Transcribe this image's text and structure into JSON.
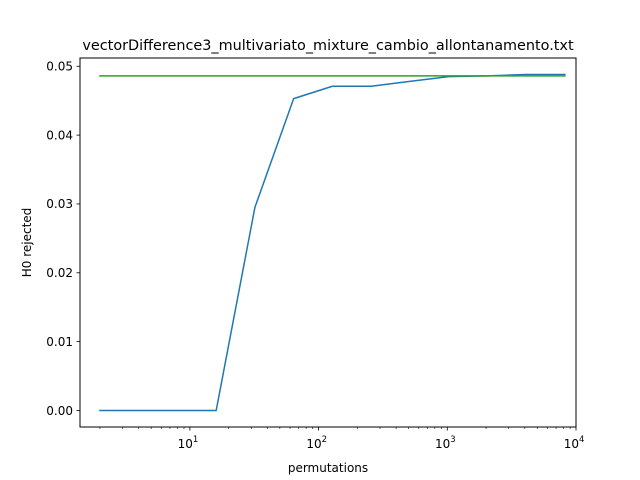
{
  "chart_data": {
    "type": "line",
    "title": "vectorDifference3_multivariato_mixture_cambio_allontanamento.txt",
    "xlabel": "permutations",
    "ylabel": "H0 rejected",
    "xscale": "log",
    "xlim": [
      1.4,
      10000
    ],
    "ylim": [
      -0.0024,
      0.0512
    ],
    "grid": false,
    "legend": "none",
    "x_ticks": [
      {
        "value": 10,
        "base": "10",
        "exp": "1"
      },
      {
        "value": 100,
        "base": "10",
        "exp": "2"
      },
      {
        "value": 1000,
        "base": "10",
        "exp": "3"
      },
      {
        "value": 10000,
        "base": "10",
        "exp": "4"
      }
    ],
    "y_ticks": [
      {
        "value": 0.0,
        "label": "0.00"
      },
      {
        "value": 0.01,
        "label": "0.01"
      },
      {
        "value": 0.02,
        "label": "0.02"
      },
      {
        "value": 0.03,
        "label": "0.03"
      },
      {
        "value": 0.04,
        "label": "0.04"
      },
      {
        "value": 0.05,
        "label": "0.05"
      }
    ],
    "series": [
      {
        "color": "#1f77b4",
        "x": [
          2,
          4,
          8,
          16,
          32,
          64,
          128,
          256,
          512,
          1024,
          2048,
          4096,
          8192
        ],
        "y": [
          0.0,
          0.0,
          0.0,
          0.0,
          0.0295,
          0.0453,
          0.0471,
          0.0471,
          0.0478,
          0.0485,
          0.0486,
          0.0488,
          0.0488
        ]
      },
      {
        "color": "#2ca02c",
        "x": [
          2,
          8192
        ],
        "y": [
          0.0486,
          0.0486
        ]
      }
    ]
  }
}
